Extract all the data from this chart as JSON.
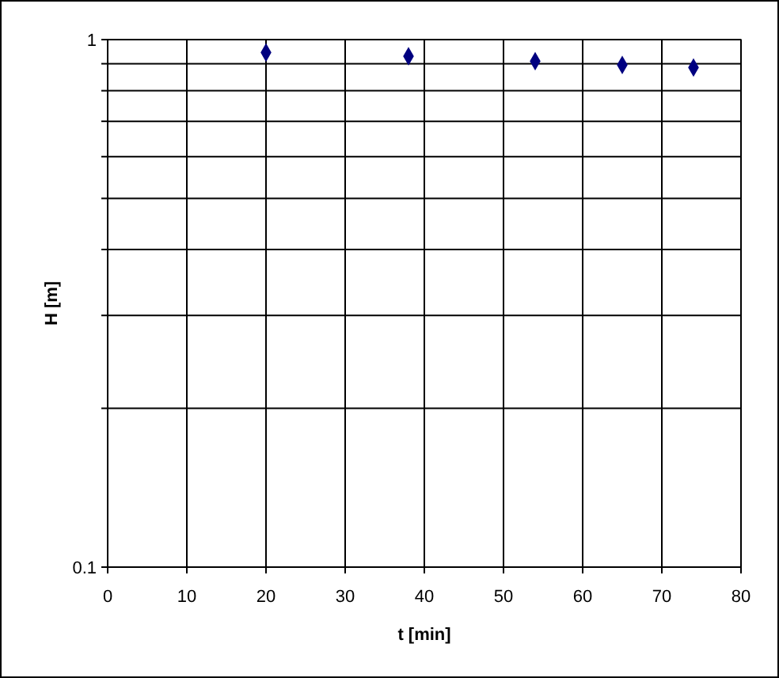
{
  "chart_data": {
    "type": "scatter",
    "xlabel": "t [min]",
    "ylabel": "H [m]",
    "x": [
      20,
      38,
      54,
      65,
      74
    ],
    "series": [
      {
        "color": "#000080",
        "values": [
          0.945,
          0.93,
          0.91,
          0.895,
          0.885
        ]
      }
    ],
    "marker": "diamond",
    "log": "y",
    "grid": true,
    "xlim": [
      0,
      80
    ],
    "xticks": [
      0,
      10,
      20,
      30,
      40,
      50,
      60,
      70,
      80
    ],
    "ylim": [
      0.1,
      1
    ],
    "yticks": [
      0.1,
      {
        "value": 0.2,
        "label": null
      },
      {
        "value": 0.3,
        "label": null
      },
      {
        "value": 0.4,
        "label": null
      },
      {
        "value": 0.5,
        "label": null
      },
      {
        "value": 0.6,
        "label": null
      },
      {
        "value": 0.7,
        "label": null
      },
      {
        "value": 0.8,
        "label": null
      },
      {
        "value": 0.9,
        "label": null
      },
      1
    ]
  }
}
